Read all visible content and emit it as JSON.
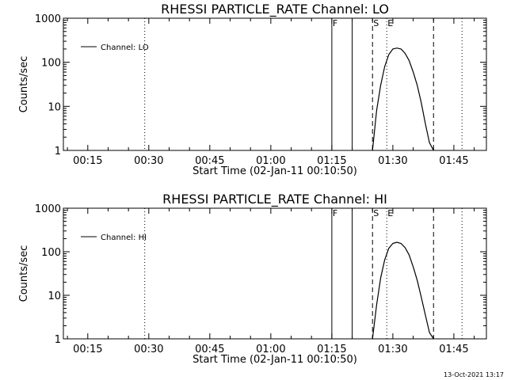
{
  "footer": "13-Oct-2021 13:17",
  "chart_data": [
    {
      "type": "line",
      "title": "RHESSI PARTICLE_RATE Channel: LO",
      "xlabel": "Start Time (02-Jan-11 00:10:50)",
      "ylabel": "Counts/sec",
      "ylog": true,
      "ylim": [
        1,
        1000
      ],
      "yticks": [
        1,
        10,
        100,
        1000
      ],
      "yticklabels": [
        "1",
        "10",
        "100",
        "1000"
      ],
      "xlim": [
        "00:09",
        "01:53"
      ],
      "xticks": [
        "00:15",
        "00:30",
        "00:45",
        "01:00",
        "01:15",
        "01:30",
        "01:45"
      ],
      "legend": "Channel: LO",
      "series": [
        {
          "name": "Channel: LO",
          "x": [
            "01:25",
            "01:26",
            "01:27",
            "01:28",
            "01:29",
            "01:30",
            "01:31",
            "01:32",
            "01:33",
            "01:34",
            "01:35",
            "01:36",
            "01:37",
            "01:38",
            "01:39",
            "01:40"
          ],
          "y": [
            1,
            8,
            30,
            80,
            150,
            200,
            210,
            200,
            160,
            110,
            60,
            30,
            12,
            4,
            1.5,
            1
          ]
        }
      ],
      "markers": [
        {
          "label": "F",
          "time": "01:15",
          "style": "solid"
        },
        {
          "label": "",
          "time": "01:20",
          "style": "solid"
        },
        {
          "label": "S",
          "time": "01:25",
          "style": "dashed"
        },
        {
          "label": "E",
          "time": "01:28.5",
          "style": "dotted"
        },
        {
          "label": "",
          "time": "01:40",
          "style": "dashed"
        },
        {
          "label": "",
          "time": "01:47",
          "style": "dotted"
        },
        {
          "label": "",
          "time": "00:29",
          "style": "dotted"
        }
      ]
    },
    {
      "type": "line",
      "title": "RHESSI PARTICLE_RATE Channel: HI",
      "xlabel": "Start Time (02-Jan-11 00:10:50)",
      "ylabel": "Counts/sec",
      "ylog": true,
      "ylim": [
        1,
        1000
      ],
      "yticks": [
        1,
        10,
        100,
        1000
      ],
      "yticklabels": [
        "1",
        "10",
        "100",
        "1000"
      ],
      "xlim": [
        "00:09",
        "01:53"
      ],
      "xticks": [
        "00:15",
        "00:30",
        "00:45",
        "01:00",
        "01:15",
        "01:30",
        "01:45"
      ],
      "legend": "Channel: HI",
      "series": [
        {
          "name": "Channel: HI",
          "x": [
            "01:25",
            "01:26",
            "01:27",
            "01:28",
            "01:29",
            "01:30",
            "01:31",
            "01:32",
            "01:33",
            "01:34",
            "01:35",
            "01:36",
            "01:37",
            "01:38",
            "01:39",
            "01:40"
          ],
          "y": [
            1,
            6,
            25,
            65,
            120,
            155,
            165,
            155,
            125,
            85,
            45,
            22,
            9,
            3.5,
            1.4,
            1
          ]
        }
      ],
      "markers": [
        {
          "label": "F",
          "time": "01:15",
          "style": "solid"
        },
        {
          "label": "",
          "time": "01:20",
          "style": "solid"
        },
        {
          "label": "S",
          "time": "01:25",
          "style": "dashed"
        },
        {
          "label": "E",
          "time": "01:28.5",
          "style": "dotted"
        },
        {
          "label": "",
          "time": "01:40",
          "style": "dashed"
        },
        {
          "label": "",
          "time": "01:47",
          "style": "dotted"
        },
        {
          "label": "",
          "time": "00:29",
          "style": "dotted"
        }
      ]
    }
  ]
}
